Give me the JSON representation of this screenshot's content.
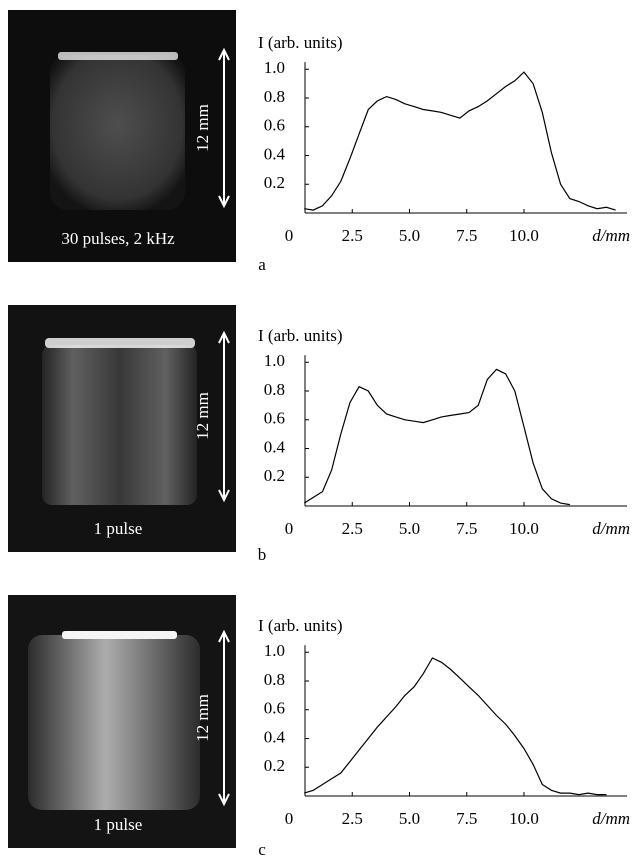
{
  "panels": [
    {
      "image_label": "30 pulses, 2 kHz",
      "scale_label": "12 mm",
      "letter": "a"
    },
    {
      "image_label": "1 pulse",
      "scale_label": "12 mm",
      "letter": "b"
    },
    {
      "image_label": "1 pulse",
      "scale_label": "12 mm",
      "letter": "c"
    }
  ],
  "chart_data": [
    {
      "type": "line",
      "ylabel": "I (arb. units)",
      "xlabel": "d/mm",
      "xlim": [
        0,
        14.5
      ],
      "ylim": [
        0,
        1.05
      ],
      "xticks": [
        0,
        2.5,
        {
          "value": 5,
          "label": "5.0"
        },
        7.5,
        {
          "value": 10,
          "label": "10.0"
        }
      ],
      "yticks": [
        0.2,
        0.4,
        0.6,
        0.8,
        {
          "value": 1,
          "label": "1.0"
        }
      ],
      "x": [
        0.4,
        0.8,
        1.2,
        1.6,
        2.0,
        2.4,
        2.8,
        3.2,
        3.6,
        4.0,
        4.4,
        4.8,
        5.2,
        5.6,
        6.0,
        6.4,
        6.8,
        7.2,
        7.6,
        8.0,
        8.4,
        8.8,
        9.2,
        9.6,
        10.0,
        10.4,
        10.8,
        11.2,
        11.6,
        12.0,
        12.4,
        12.8,
        13.2,
        13.6,
        14.0
      ],
      "series": [
        {
          "color": "#000000",
          "values": [
            0.03,
            0.02,
            0.05,
            0.12,
            0.22,
            0.38,
            0.55,
            0.72,
            0.78,
            0.81,
            0.79,
            0.76,
            0.74,
            0.72,
            0.71,
            0.7,
            0.68,
            0.66,
            0.71,
            0.74,
            0.78,
            0.83,
            0.88,
            0.92,
            0.98,
            0.9,
            0.7,
            0.42,
            0.2,
            0.1,
            0.08,
            0.05,
            0.03,
            0.04,
            0.02
          ]
        }
      ]
    },
    {
      "type": "line",
      "ylabel": "I (arb. units)",
      "xlabel": "d/mm",
      "xlim": [
        0,
        14.5
      ],
      "ylim": [
        0,
        1.05
      ],
      "xticks": [
        0,
        2.5,
        {
          "value": 5,
          "label": "5.0"
        },
        7.5,
        {
          "value": 10,
          "label": "10.0"
        }
      ],
      "yticks": [
        0.2,
        0.4,
        0.6,
        0.8,
        {
          "value": 1,
          "label": "1.0"
        }
      ],
      "x": [
        0.4,
        0.8,
        1.2,
        1.6,
        2.0,
        2.4,
        2.8,
        3.2,
        3.6,
        4.0,
        4.4,
        4.8,
        5.2,
        5.6,
        6.0,
        6.4,
        6.8,
        7.2,
        7.6,
        8.0,
        8.4,
        8.8,
        9.2,
        9.6,
        10.0,
        10.4,
        10.8,
        11.2,
        11.6,
        12.0
      ],
      "series": [
        {
          "color": "#000000",
          "values": [
            0.02,
            0.06,
            0.1,
            0.25,
            0.5,
            0.72,
            0.83,
            0.8,
            0.7,
            0.64,
            0.62,
            0.6,
            0.59,
            0.58,
            0.6,
            0.62,
            0.63,
            0.64,
            0.65,
            0.7,
            0.88,
            0.95,
            0.92,
            0.8,
            0.55,
            0.3,
            0.12,
            0.05,
            0.02,
            0.01
          ]
        }
      ]
    },
    {
      "type": "line",
      "ylabel": "I (arb. units)",
      "xlabel": "d/mm",
      "xlim": [
        0,
        14.5
      ],
      "ylim": [
        0,
        1.05
      ],
      "xticks": [
        0,
        2.5,
        {
          "value": 5,
          "label": "5.0"
        },
        7.5,
        {
          "value": 10,
          "label": "10.0"
        }
      ],
      "yticks": [
        0.2,
        0.4,
        0.6,
        0.8,
        {
          "value": 1,
          "label": "1.0"
        }
      ],
      "x": [
        0.4,
        0.8,
        1.2,
        1.6,
        2.0,
        2.4,
        2.8,
        3.2,
        3.6,
        4.0,
        4.4,
        4.8,
        5.2,
        5.6,
        6.0,
        6.4,
        6.8,
        7.2,
        7.6,
        8.0,
        8.4,
        8.8,
        9.2,
        9.6,
        10.0,
        10.4,
        10.8,
        11.2,
        11.6,
        12.0,
        12.4,
        12.8,
        13.2,
        13.6
      ],
      "series": [
        {
          "color": "#000000",
          "values": [
            0.02,
            0.04,
            0.08,
            0.12,
            0.16,
            0.24,
            0.32,
            0.4,
            0.48,
            0.55,
            0.62,
            0.7,
            0.76,
            0.85,
            0.96,
            0.93,
            0.88,
            0.82,
            0.76,
            0.7,
            0.63,
            0.56,
            0.5,
            0.42,
            0.33,
            0.22,
            0.08,
            0.04,
            0.02,
            0.02,
            0.01,
            0.02,
            0.01,
            0.01
          ]
        }
      ]
    }
  ]
}
